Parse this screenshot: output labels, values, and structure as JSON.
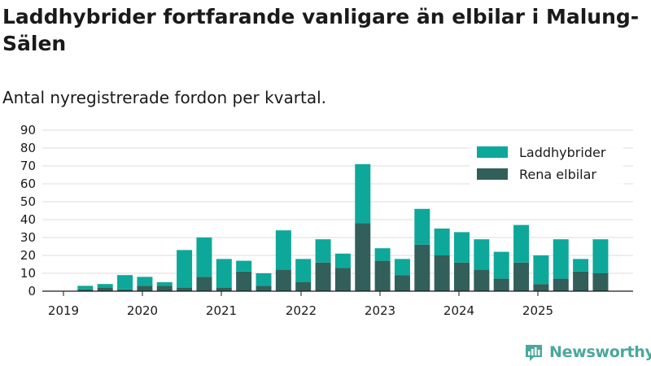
{
  "title": "Laddhybrider fortfarande vanligare än elbilar i Malung-Sälen",
  "subtitle": "Antal nyregistrerade fordon per kvartal.",
  "brand": "Newsworthy",
  "colors": {
    "phev": "#0da89a",
    "bev": "#325f5a",
    "grid": "#dddddd",
    "logo": "#4aa89a"
  },
  "chart_data": {
    "type": "bar",
    "stacked": true,
    "title": "Laddhybrider fortfarande vanligare än elbilar i Malung-Sälen",
    "subtitle": "Antal nyregistrerade fordon per kvartal.",
    "xlabel": "",
    "ylabel": "",
    "ylim": [
      0,
      90
    ],
    "yticks": [
      "0",
      "10",
      "20",
      "30",
      "40",
      "50",
      "60",
      "70",
      "80",
      "90"
    ],
    "xtick_labels": [
      "2019",
      "2020",
      "2021",
      "2022",
      "2023",
      "2024",
      "2025"
    ],
    "legend_position": "top-right",
    "grid": true,
    "categories": [
      "2019 Q1",
      "2019 Q2",
      "2019 Q3",
      "2019 Q4",
      "2020 Q1",
      "2020 Q2",
      "2020 Q3",
      "2020 Q4",
      "2021 Q1",
      "2021 Q2",
      "2021 Q3",
      "2021 Q4",
      "2022 Q1",
      "2022 Q2",
      "2022 Q3",
      "2022 Q4",
      "2023 Q1",
      "2023 Q2",
      "2023 Q3",
      "2023 Q4",
      "2024 Q1",
      "2024 Q2",
      "2024 Q3",
      "2024 Q4",
      "2025 Q1",
      "2025 Q2",
      "2025 Q3",
      "2025 Q4"
    ],
    "series": [
      {
        "name": "Rena elbilar",
        "values": [
          0,
          1,
          2,
          1,
          3,
          3,
          2,
          8,
          2,
          11,
          3,
          12,
          5,
          16,
          13,
          38,
          17,
          9,
          26,
          20,
          16,
          12,
          7,
          16,
          4,
          7,
          11,
          10
        ]
      },
      {
        "name": "Laddhybrider",
        "values": [
          0,
          2,
          2,
          8,
          5,
          2,
          21,
          22,
          16,
          6,
          7,
          22,
          13,
          13,
          8,
          33,
          7,
          9,
          20,
          15,
          17,
          17,
          15,
          21,
          16,
          22,
          7,
          19
        ]
      }
    ]
  }
}
